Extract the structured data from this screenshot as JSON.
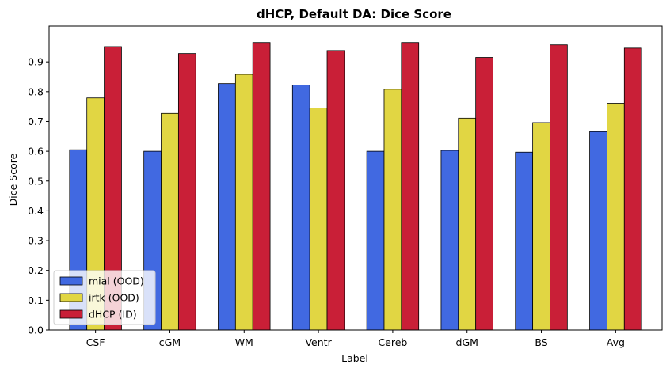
{
  "chart_data": {
    "type": "bar",
    "title": "dHCP, Default DA: Dice Score",
    "xlabel": "Label",
    "ylabel": "Dice Score",
    "categories": [
      "CSF",
      "cGM",
      "WM",
      "Ventr",
      "Cereb",
      "dGM",
      "BS",
      "Avg"
    ],
    "ylim": [
      0,
      1.02
    ],
    "yticks": [
      0.0,
      0.1,
      0.2,
      0.3,
      0.4,
      0.5,
      0.6,
      0.7,
      0.8,
      0.9
    ],
    "ytick_labels": [
      "0.0",
      "0.1",
      "0.2",
      "0.3",
      "0.4",
      "0.5",
      "0.6",
      "0.7",
      "0.8",
      "0.9"
    ],
    "grid": false,
    "legend_position": "bottom-left",
    "series": [
      {
        "name": "mial (OOD)",
        "color": "#4169E1",
        "values": [
          0.605,
          0.6,
          0.827,
          0.822,
          0.6,
          0.603,
          0.597,
          0.666
        ]
      },
      {
        "name": "irtk (OOD)",
        "color": "#E1D643",
        "values": [
          0.779,
          0.727,
          0.858,
          0.745,
          0.808,
          0.711,
          0.696,
          0.761
        ]
      },
      {
        "name": "dHCP (ID)",
        "color": "#C91F37",
        "values": [
          0.951,
          0.928,
          0.965,
          0.938,
          0.965,
          0.915,
          0.957,
          0.946
        ]
      }
    ]
  }
}
